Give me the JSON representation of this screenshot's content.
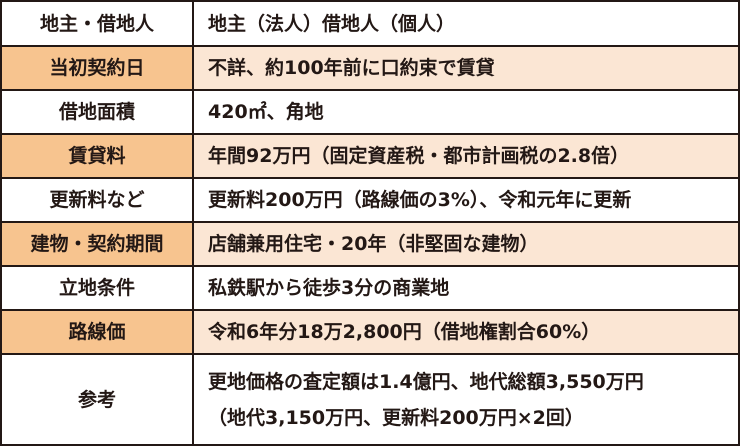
{
  "rows": [
    {
      "key": "地主・借地人",
      "value": "地主（法人）借地人（個人）"
    },
    {
      "key": "当初契約日",
      "value": "不詳、約100年前に口約束で賃貸"
    },
    {
      "key": "借地面積",
      "value": "420㎡、角地"
    },
    {
      "key": "賃貸料",
      "value": "年間92万円（固定資産税・都市計画税の2.8倍）"
    },
    {
      "key": "更新料など",
      "value": "更新料200万円（路線価の3%）、令和元年に更新"
    },
    {
      "key": "建物・契約期間",
      "value": "店舗兼用住宅・20年（非堅固な建物）"
    },
    {
      "key": "立地条件",
      "value": "私鉄駅から徒歩3分の商業地"
    },
    {
      "key": "路線価",
      "value": "令和6年分18万2,800円（借地権割合60%）"
    },
    {
      "key": "参考",
      "value_line1": "更地価格の査定額は1.4億円、地代総額3,550万円",
      "value_line2": "（地代3,150万円、更新料200万円×2回）"
    }
  ],
  "colors": {
    "border": "#231815",
    "key_tint": "#f7c48f",
    "value_tint": "#fbe6d4",
    "white": "#ffffff"
  }
}
